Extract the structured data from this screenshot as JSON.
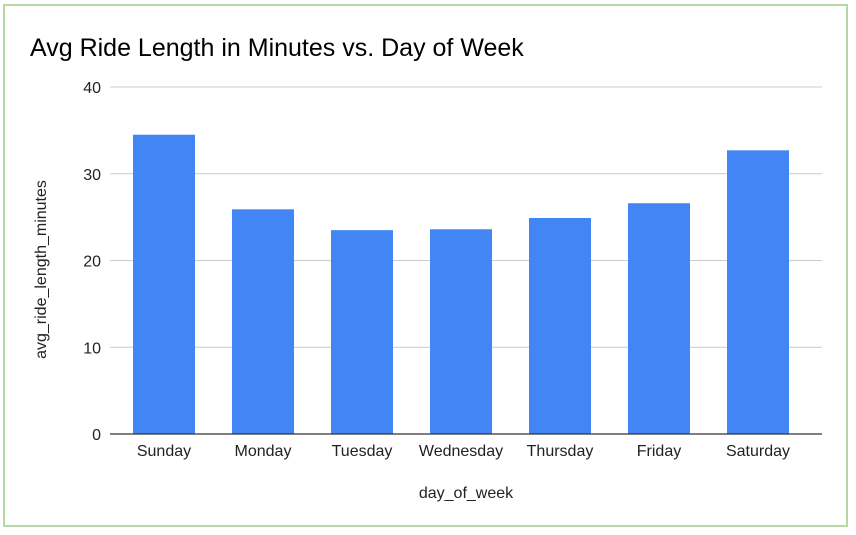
{
  "chart_data": {
    "type": "bar",
    "title": "Avg Ride Length in Minutes vs. Day of Week",
    "xlabel": "day_of_week",
    "ylabel": "avg_ride_length_minutes",
    "categories": [
      "Sunday",
      "Monday",
      "Tuesday",
      "Wednesday",
      "Thursday",
      "Friday",
      "Saturday"
    ],
    "series": [
      {
        "values": [
          34.5,
          25.9,
          23.5,
          23.6,
          24.9,
          26.6,
          32.7
        ]
      }
    ],
    "ylim": [
      0,
      40
    ],
    "yticks": [
      "0",
      "10",
      "20",
      "30",
      "40"
    ],
    "grid": true,
    "legend": "none",
    "colors": {
      "bar": "#4285f4",
      "grid": "#cccccc",
      "axis": "#333333",
      "frame": "#b6d7a8"
    }
  }
}
